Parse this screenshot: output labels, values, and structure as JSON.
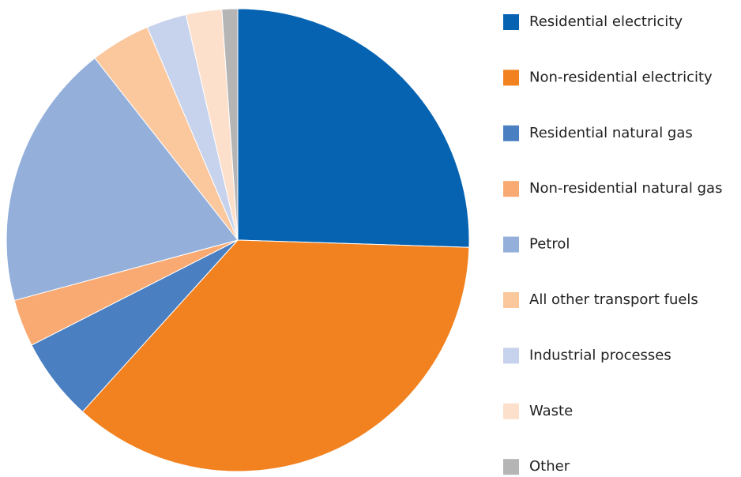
{
  "chart_data": {
    "type": "pie",
    "categories": [
      "Residential electricity",
      "Non-residential electricity",
      "Residential natural gas",
      "Non-residential natural gas",
      "Petrol",
      "All other transport fuels",
      "Industrial processes",
      "Waste",
      "Other"
    ],
    "values": [
      25.5,
      36.2,
      5.8,
      3.3,
      18.6,
      4.2,
      2.8,
      2.5,
      1.1
    ],
    "colors": [
      "#0563b2",
      "#f28220",
      "#4a7fc1",
      "#f8aa72",
      "#94b0da",
      "#fbc79d",
      "#c7d2ec",
      "#fde0cc",
      "#b5b5b5"
    ],
    "legend": "right"
  }
}
